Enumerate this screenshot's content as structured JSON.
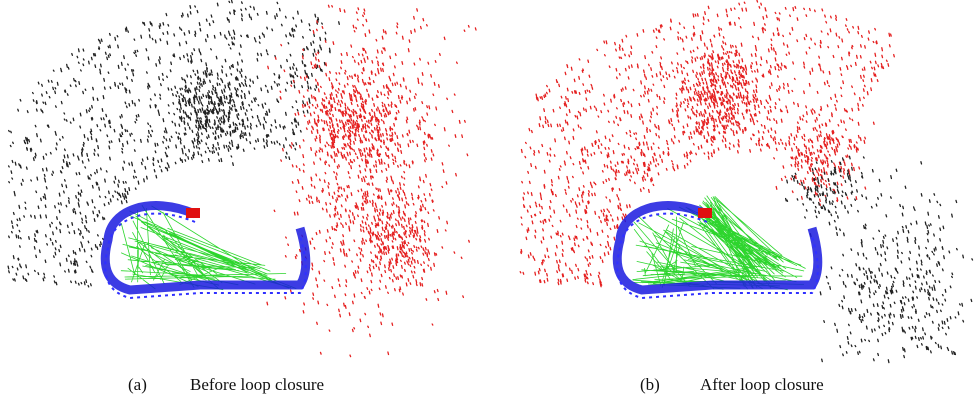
{
  "figure": {
    "panels": [
      {
        "tag": "(a)",
        "caption": "Before loop closure"
      },
      {
        "tag": "(b)",
        "caption": "After loop closure"
      }
    ]
  }
}
